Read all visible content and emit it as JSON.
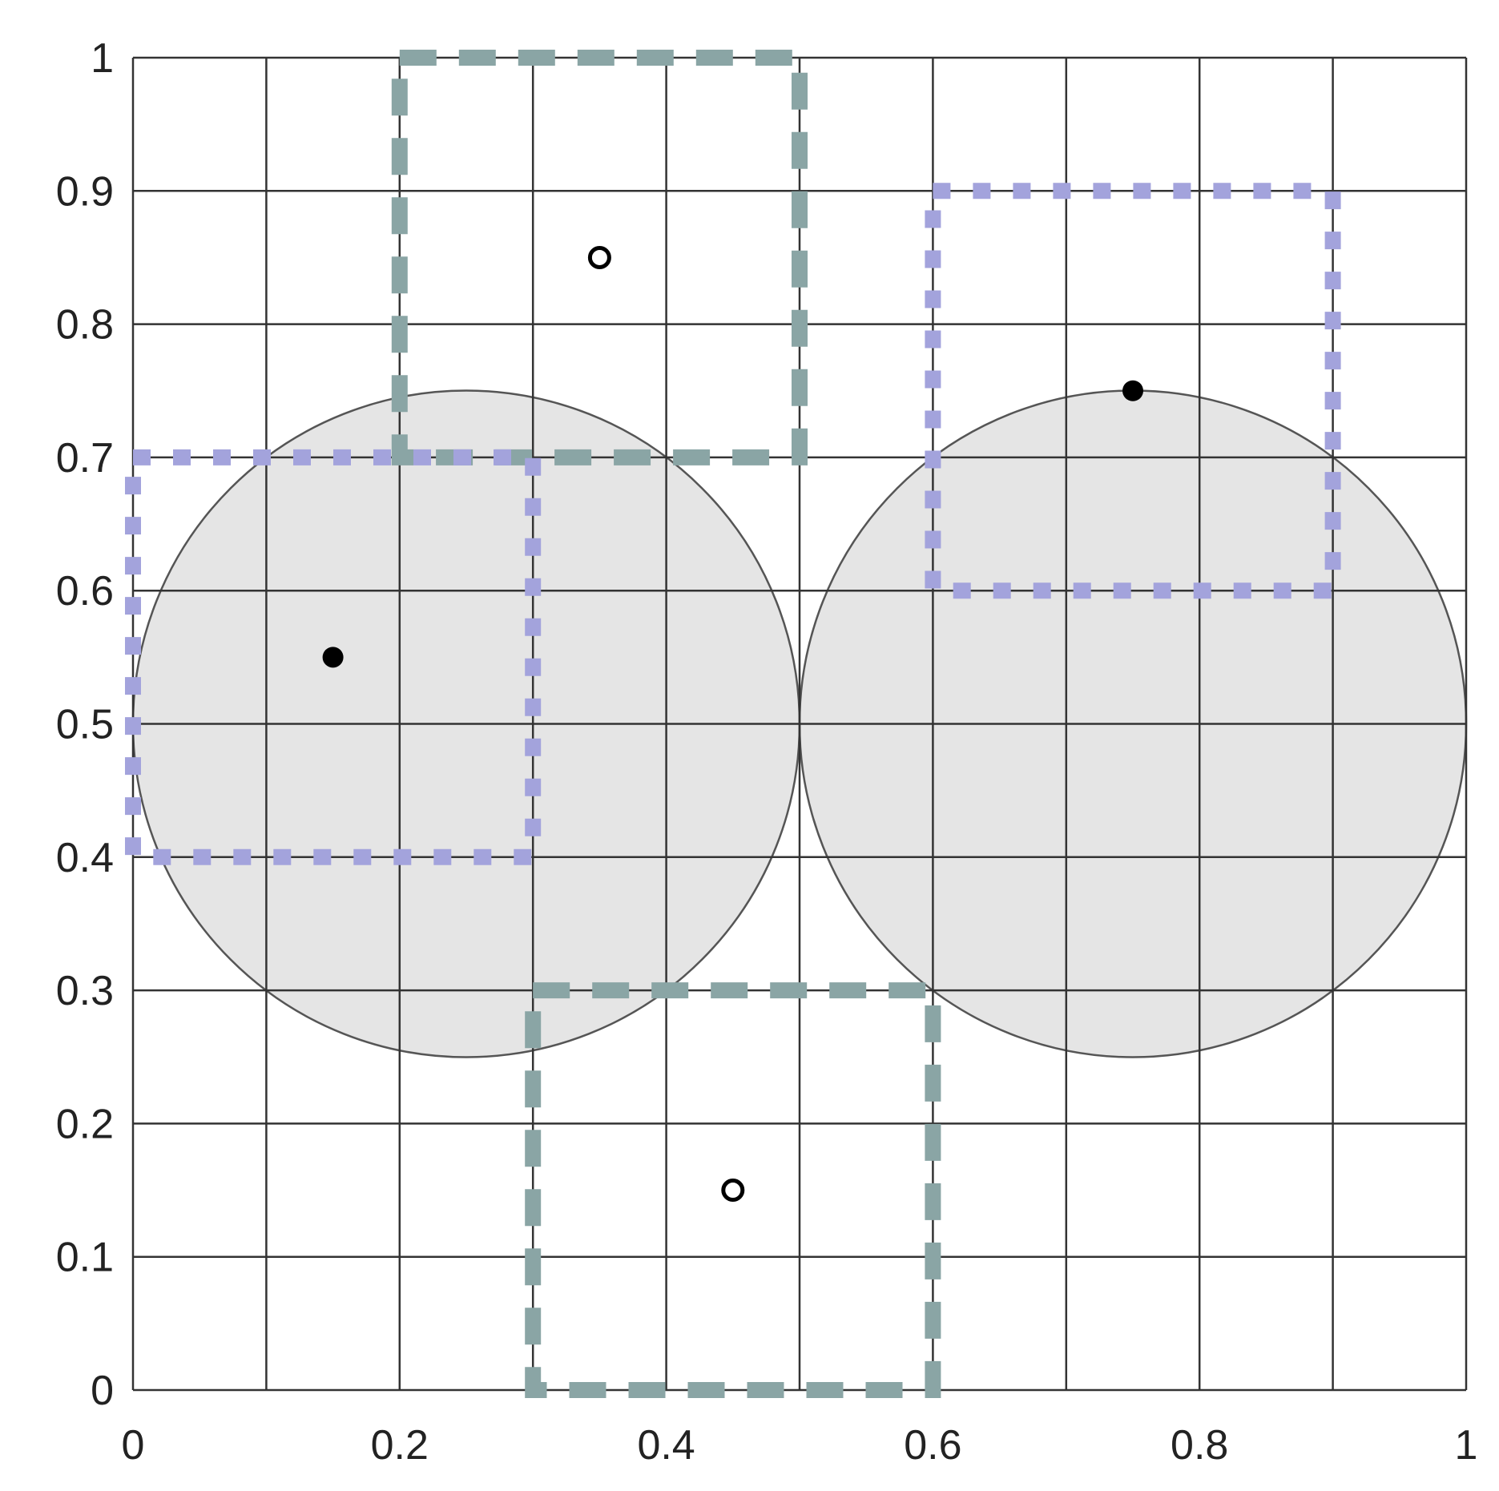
{
  "chart_data": {
    "type": "scatter",
    "title": "",
    "xlabel": "",
    "ylabel": "",
    "xlim": [
      0,
      1
    ],
    "ylim": [
      0,
      1
    ],
    "grid": true,
    "grid_step": 0.1,
    "x_tick_labels": [
      {
        "value": 0,
        "label": "0"
      },
      {
        "value": 0.2,
        "label": "0.2"
      },
      {
        "value": 0.4,
        "label": "0.4"
      },
      {
        "value": 0.6,
        "label": "0.6"
      },
      {
        "value": 0.8,
        "label": "0.8"
      },
      {
        "value": 1,
        "label": "1"
      }
    ],
    "y_tick_labels": [
      {
        "value": 0,
        "label": "0"
      },
      {
        "value": 0.1,
        "label": "0.1"
      },
      {
        "value": 0.2,
        "label": "0.2"
      },
      {
        "value": 0.3,
        "label": "0.3"
      },
      {
        "value": 0.4,
        "label": "0.4"
      },
      {
        "value": 0.5,
        "label": "0.5"
      },
      {
        "value": 0.6,
        "label": "0.6"
      },
      {
        "value": 0.7,
        "label": "0.7"
      },
      {
        "value": 0.8,
        "label": "0.8"
      },
      {
        "value": 0.9,
        "label": "0.9"
      },
      {
        "value": 1,
        "label": "1"
      }
    ],
    "circles": [
      {
        "cx": 0.25,
        "cy": 0.5,
        "r": 0.25,
        "fill": "#e5e5e5",
        "stroke": "#555555"
      },
      {
        "cx": 0.75,
        "cy": 0.5,
        "r": 0.25,
        "fill": "#e5e5e5",
        "stroke": "#555555"
      }
    ],
    "boxes": [
      {
        "style": "dashed",
        "color": "#8aa5a5",
        "x0": 0.2,
        "x1": 0.5,
        "y0": 0.7,
        "y1": 1.0
      },
      {
        "style": "dashed",
        "color": "#8aa5a5",
        "x0": 0.3,
        "x1": 0.6,
        "y0": 0.0,
        "y1": 0.3
      },
      {
        "style": "dotted",
        "color": "#a3a3dc",
        "x0": 0.0,
        "x1": 0.3,
        "y0": 0.4,
        "y1": 0.7
      },
      {
        "style": "dotted",
        "color": "#a3a3dc",
        "x0": 0.6,
        "x1": 0.9,
        "y0": 0.6,
        "y1": 0.9
      }
    ],
    "points": [
      {
        "x": 0.15,
        "y": 0.55,
        "filled": true
      },
      {
        "x": 0.75,
        "y": 0.75,
        "filled": true
      },
      {
        "x": 0.35,
        "y": 0.85,
        "filled": false
      },
      {
        "x": 0.45,
        "y": 0.15,
        "filled": false
      }
    ]
  }
}
